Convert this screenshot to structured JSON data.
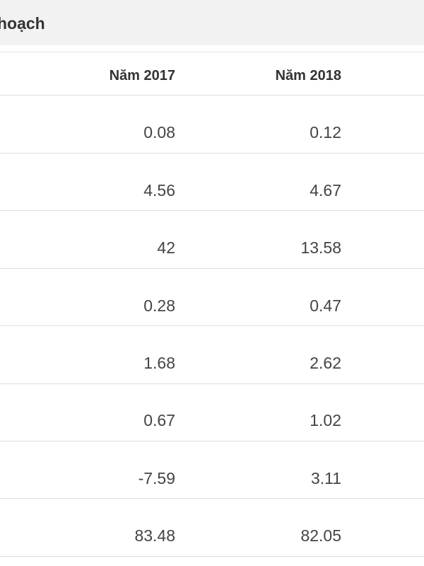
{
  "header": {
    "title": "hoạch"
  },
  "table": {
    "columns": [
      "Năm 2017",
      "Năm 2018"
    ],
    "rows": [
      [
        "0.08",
        "0.12"
      ],
      [
        "4.56",
        "4.67"
      ],
      [
        "42",
        "13.58"
      ],
      [
        "0.28",
        "0.47"
      ],
      [
        "1.68",
        "2.62"
      ],
      [
        "0.67",
        "1.02"
      ],
      [
        "-7.59",
        "3.11"
      ],
      [
        "83.48",
        "82.05"
      ]
    ]
  }
}
